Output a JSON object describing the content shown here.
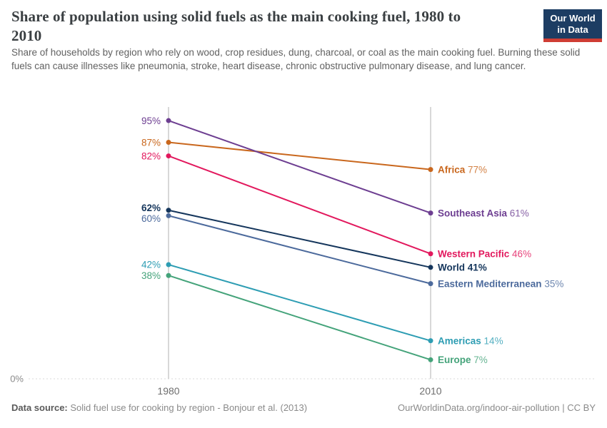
{
  "header": {
    "title": "Share of population using solid fuels as the main cooking fuel, 1980 to 2010",
    "subtitle": "Share of households by region who rely on wood, crop residues, dung, charcoal, or coal as the main cooking fuel. Burning these solid fuels can cause illnesses like pneumonia, stroke, heart disease, chronic obstructive pulmonary disease, and lung cancer.",
    "logo": {
      "line1": "Our World",
      "line2": "in Data",
      "bg_color": "#1d3d63",
      "accent_color": "#cf3d34"
    }
  },
  "chart_data": {
    "type": "line",
    "subtype": "slope",
    "x_labels": [
      "1980",
      "2010"
    ],
    "ylim": [
      0,
      100
    ],
    "baseline_label": "0%",
    "grid": "dotted horizontal baseline at 0%; solid light-gray vertical axis line at each year",
    "legend_position": "labels beside line endpoints",
    "series": [
      {
        "name": "Africa",
        "values": [
          87,
          77
        ],
        "color": "#c9671d",
        "bold": false
      },
      {
        "name": "Southeast Asia",
        "values": [
          95,
          61
        ],
        "color": "#6d3e91",
        "bold": false
      },
      {
        "name": "Western Pacific",
        "values": [
          82,
          46
        ],
        "color": "#e2185d",
        "bold": false
      },
      {
        "name": "World",
        "values": [
          62,
          41
        ],
        "color": "#15365c",
        "bold": true
      },
      {
        "name": "Eastern Mediterranean",
        "values": [
          60,
          35
        ],
        "color": "#4c6a9c",
        "bold": false
      },
      {
        "name": "Americas",
        "values": [
          42,
          14
        ],
        "color": "#2d9db3",
        "bold": false
      },
      {
        "name": "Europe",
        "values": [
          38,
          7
        ],
        "color": "#44a37a",
        "bold": false
      }
    ],
    "start_value_labels": [
      "87%",
      "95%",
      "82%",
      "62%",
      "60%",
      "42%",
      "38%"
    ],
    "end_labels": [
      "Africa 77%",
      "Southeast Asia 61%",
      "Western Pacific 46%",
      "World 41%",
      "Eastern Mediterranean 35%",
      "Americas 14%",
      "Europe 7%"
    ]
  },
  "footer": {
    "source_label": "Data source:",
    "source_text": "Solid fuel use for cooking by region - Bonjour et al. (2013)",
    "credit": "OurWorldinData.org/indoor-air-pollution | CC BY"
  }
}
